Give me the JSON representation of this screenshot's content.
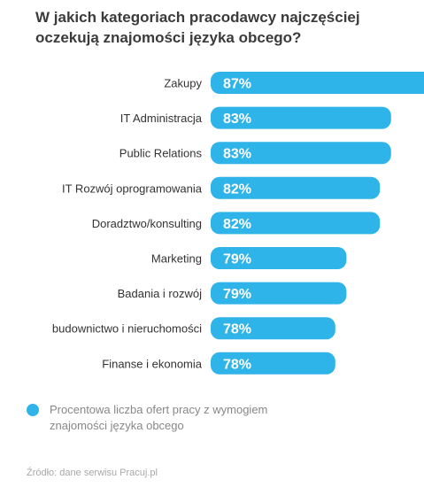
{
  "title": "W jakich kategoriach pracodawcy najczęściej oczekują znajomości języka obcego?",
  "colors": {
    "bar": "#2fb4e9",
    "title": "#3b3b3b",
    "label": "#333333"
  },
  "chart_data": {
    "type": "bar",
    "orientation": "horizontal",
    "categories": [
      "Zakupy",
      "IT Administracja",
      "Public Relations",
      "IT Rozwój oprogramowania",
      "Doradztwo/konsulting",
      "Marketing",
      "Badania i rozwój",
      "budownictwo i nieruchomości",
      "Finanse i ekonomia"
    ],
    "values": [
      87,
      83,
      83,
      82,
      82,
      79,
      79,
      78,
      78
    ],
    "value_labels": [
      "87%",
      "83%",
      "83%",
      "82%",
      "82%",
      "79%",
      "79%",
      "78%",
      "78%"
    ],
    "unit": "%",
    "legend": "Procentowa liczba ofert pracy z wymogiem znajomości języka obcego",
    "grid": false
  },
  "source": "Źródło: dane serwisu Pracuj.pl"
}
